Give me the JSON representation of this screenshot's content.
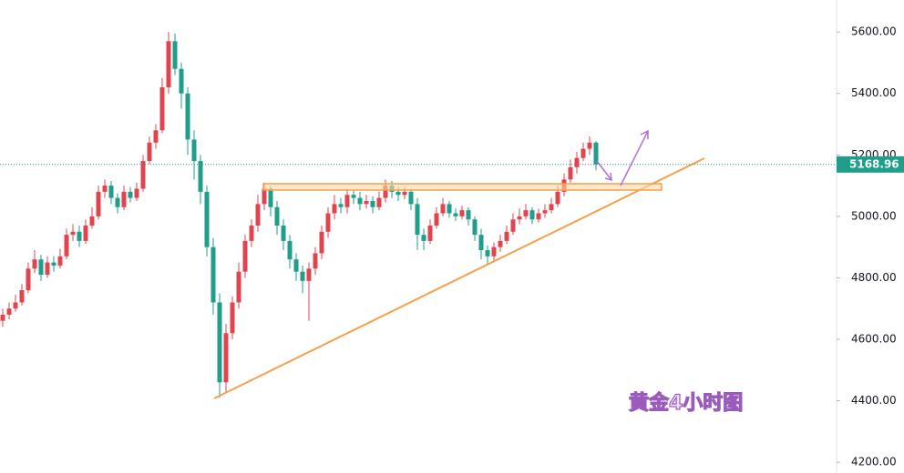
{
  "chart_data": {
    "type": "candlestick",
    "annotation": "黄金4小时图",
    "up_color": "#e0444f",
    "down_color": "#1f9e8c",
    "ylim": [
      4165,
      5704
    ],
    "yticks": [
      {
        "value": 4200,
        "label": "4200.00"
      },
      {
        "value": 4400,
        "label": "4400.00"
      },
      {
        "value": 4600,
        "label": "4600.00"
      },
      {
        "value": 4800,
        "label": "4800.00"
      },
      {
        "value": 5000,
        "label": "5000.00"
      },
      {
        "value": 5200,
        "label": "5200.00"
      },
      {
        "value": 5400,
        "label": "5400.00"
      },
      {
        "value": 5600,
        "label": "5600.00"
      }
    ],
    "last_price": 5168.96,
    "open": [
      4660,
      4680,
      4700,
      4720,
      4760,
      4830,
      4860,
      4810,
      4850,
      4840,
      4870,
      4940,
      4950,
      4920,
      4970,
      5000,
      5080,
      5100,
      5060,
      5030,
      5080,
      5060,
      5090,
      5180,
      5240,
      5280,
      5420,
      5570,
      5480,
      5400,
      5250,
      5180,
      5080,
      4900,
      4720,
      4460,
      4620,
      4720,
      4820,
      4920,
      4970,
      5040,
      5090,
      5030,
      4970,
      4920,
      4860,
      4820,
      4790,
      4830,
      4880,
      4950,
      5010,
      5040,
      5030,
      5070,
      5060,
      5040,
      5050,
      5030,
      5060,
      5100,
      5080,
      5070,
      5080,
      5040,
      4940,
      4920,
      4970,
      5010,
      5040,
      5010,
      5000,
      5020,
      4990,
      4940,
      4890,
      4870,
      4900,
      4920,
      4950,
      4990,
      5000,
      5020,
      4990,
      5010,
      5020,
      5040,
      5080,
      5120,
      5160,
      5190,
      5220,
      5240
    ],
    "high": [
      4700,
      4720,
      4745,
      4780,
      4850,
      4890,
      4875,
      4870,
      4870,
      4895,
      4960,
      4975,
      4970,
      4990,
      5030,
      5100,
      5120,
      5115,
      5075,
      5100,
      5095,
      5110,
      5200,
      5260,
      5300,
      5450,
      5600,
      5595,
      5500,
      5420,
      5280,
      5200,
      5100,
      4930,
      4750,
      4650,
      4740,
      4850,
      4940,
      4990,
      5070,
      5110,
      5100,
      5050,
      4990,
      4940,
      4880,
      4840,
      4850,
      4900,
      4970,
      5030,
      5070,
      5060,
      5090,
      5085,
      5080,
      5070,
      5065,
      5080,
      5120,
      5115,
      5095,
      5095,
      5090,
      5060,
      4960,
      4990,
      5030,
      5060,
      5050,
      5025,
      5035,
      5030,
      5000,
      4960,
      4905,
      4915,
      4940,
      4970,
      5010,
      5025,
      5040,
      5030,
      5025,
      5040,
      5060,
      5100,
      5140,
      5185,
      5210,
      5240,
      5260,
      5245
    ],
    "low": [
      4640,
      4665,
      4690,
      4710,
      4750,
      4815,
      4790,
      4800,
      4820,
      4830,
      4860,
      4920,
      4900,
      4910,
      4960,
      4990,
      5060,
      5040,
      5010,
      5020,
      5045,
      5050,
      5080,
      5170,
      5220,
      5270,
      5400,
      5460,
      5350,
      5200,
      5120,
      5040,
      4870,
      4680,
      4410,
      4430,
      4600,
      4700,
      4800,
      4900,
      4950,
      5020,
      5000,
      4940,
      4890,
      4830,
      4790,
      4750,
      4660,
      4810,
      4860,
      4930,
      4990,
      5010,
      5010,
      5040,
      5020,
      5025,
      5010,
      5020,
      5045,
      5060,
      5050,
      5055,
      5020,
      4890,
      4890,
      4910,
      4960,
      5000,
      4995,
      4985,
      4990,
      4970,
      4920,
      4860,
      4840,
      4855,
      4885,
      4910,
      4940,
      4975,
      4990,
      4975,
      4980,
      4995,
      5010,
      5030,
      5065,
      5110,
      5140,
      5180,
      5200,
      5150
    ],
    "close": [
      4680,
      4700,
      4720,
      4760,
      4830,
      4860,
      4810,
      4850,
      4840,
      4870,
      4940,
      4950,
      4920,
      4970,
      5000,
      5080,
      5100,
      5060,
      5030,
      5080,
      5060,
      5090,
      5180,
      5240,
      5280,
      5420,
      5570,
      5480,
      5400,
      5250,
      5180,
      5080,
      4900,
      4720,
      4460,
      4620,
      4720,
      4820,
      4920,
      4970,
      5040,
      5090,
      5030,
      4970,
      4920,
      4860,
      4820,
      4790,
      4830,
      4880,
      4950,
      5010,
      5040,
      5030,
      5070,
      5060,
      5040,
      5050,
      5030,
      5060,
      5100,
      5080,
      5070,
      5080,
      5040,
      4940,
      4920,
      4970,
      5010,
      5040,
      5010,
      5000,
      5020,
      4990,
      4940,
      4890,
      4870,
      4900,
      4920,
      4950,
      4990,
      5000,
      5020,
      4990,
      5010,
      5020,
      5040,
      5080,
      5120,
      5160,
      5190,
      5220,
      5240,
      5168.96
    ]
  }
}
